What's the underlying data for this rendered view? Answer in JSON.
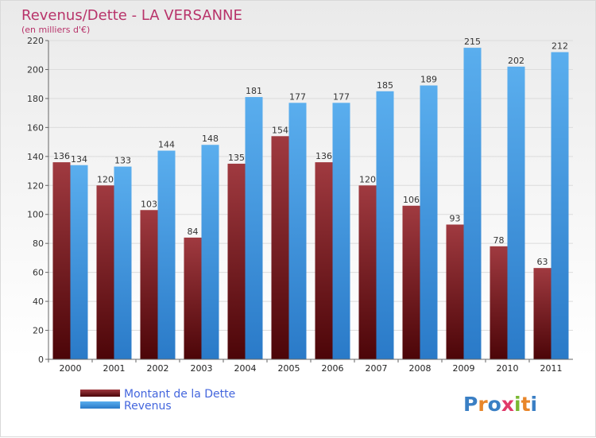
{
  "chart_data": {
    "type": "bar",
    "title": "Revenus/Dette - LA VERSANNE",
    "subtitle": "(en milliers d'€)",
    "categories": [
      "2000",
      "2001",
      "2002",
      "2003",
      "2004",
      "2005",
      "2006",
      "2007",
      "2008",
      "2009",
      "2010",
      "2011"
    ],
    "series": [
      {
        "name": "Montant de la Dette",
        "values": [
          136,
          120,
          103,
          84,
          135,
          154,
          136,
          120,
          106,
          93,
          78,
          63
        ],
        "color": "#7a1f25"
      },
      {
        "name": "Revenus",
        "values": [
          134,
          133,
          144,
          148,
          181,
          177,
          177,
          185,
          189,
          215,
          202,
          212
        ],
        "color": "#4aa3e8"
      }
    ],
    "ylim": [
      0,
      220
    ],
    "yticks": [
      0,
      20,
      40,
      60,
      80,
      100,
      120,
      140,
      160,
      180,
      200,
      220
    ],
    "grid": true,
    "legend_position": "bottom-left"
  },
  "logo": {
    "text": "Proxiti"
  }
}
